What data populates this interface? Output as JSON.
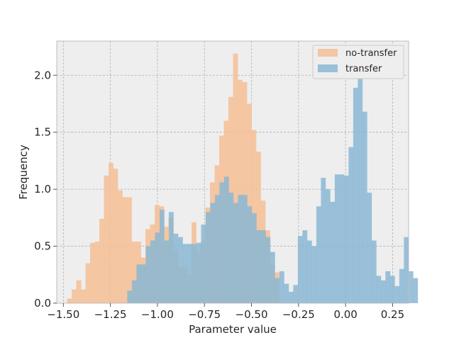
{
  "chart_data": {
    "type": "histogram",
    "xlabel": "Parameter value",
    "ylabel": "Frequency",
    "xlim": [
      -1.535,
      0.335
    ],
    "ylim": [
      0.0,
      2.3
    ],
    "xticks": [
      -1.5,
      -1.25,
      -1.0,
      -0.75,
      -0.5,
      -0.25,
      0.0,
      0.25
    ],
    "xtick_labels": [
      "−1.50",
      "−1.25",
      "−1.00",
      "−0.75",
      "−0.50",
      "−0.25",
      "0.00",
      "0.25"
    ],
    "yticks": [
      0.0,
      0.5,
      1.0,
      1.5,
      2.0
    ],
    "ytick_labels": [
      "0.0",
      "0.5",
      "1.0",
      "1.5",
      "2.0"
    ],
    "grid": true,
    "legend_position": "top-right",
    "series": [
      {
        "name": "no-transfer",
        "color": "#F4BE94",
        "bin_start": -1.48,
        "bin_width": 0.0245,
        "values": [
          0.04,
          0.12,
          0.2,
          0.12,
          0.35,
          0.53,
          0.54,
          0.74,
          1.12,
          1.23,
          1.18,
          0.99,
          0.93,
          0.93,
          0.54,
          0.54,
          0.4,
          0.65,
          0.69,
          0.86,
          0.85,
          0.67,
          0.75,
          0.47,
          0.32,
          0.32,
          0.25,
          0.71,
          0.44,
          0.54,
          0.84,
          1.06,
          1.21,
          1.47,
          1.6,
          1.81,
          2.19,
          1.96,
          1.94,
          1.75,
          1.52,
          1.33,
          0.9,
          0.64,
          0.34,
          0.27
        ],
        "values_note": ""
      },
      {
        "name": "transfer",
        "color": "#89B7D4",
        "bin_start": -1.16,
        "bin_width": 0.0245,
        "values": [
          0.11,
          0.2,
          0.34,
          0.34,
          0.5,
          0.55,
          0.62,
          0.82,
          0.55,
          0.8,
          0.61,
          0.58,
          0.52,
          0.52,
          0.52,
          0.53,
          0.69,
          0.8,
          0.88,
          0.95,
          1.06,
          1.11,
          0.97,
          0.88,
          0.95,
          0.95,
          0.85,
          0.79,
          0.64,
          0.64,
          0.58,
          0.45,
          0.22,
          0.28,
          0.17,
          0.1,
          0.16,
          0.59,
          0.64,
          0.55,
          0.5,
          0.85,
          1.1,
          1.0,
          0.89,
          1.13,
          1.13,
          1.12,
          1.37,
          1.89,
          2.03,
          1.68,
          0.97,
          0.55,
          0.24,
          0.2,
          0.28,
          0.24,
          0.15,
          0.3,
          0.58,
          0.28,
          0.22
        ]
      }
    ]
  }
}
